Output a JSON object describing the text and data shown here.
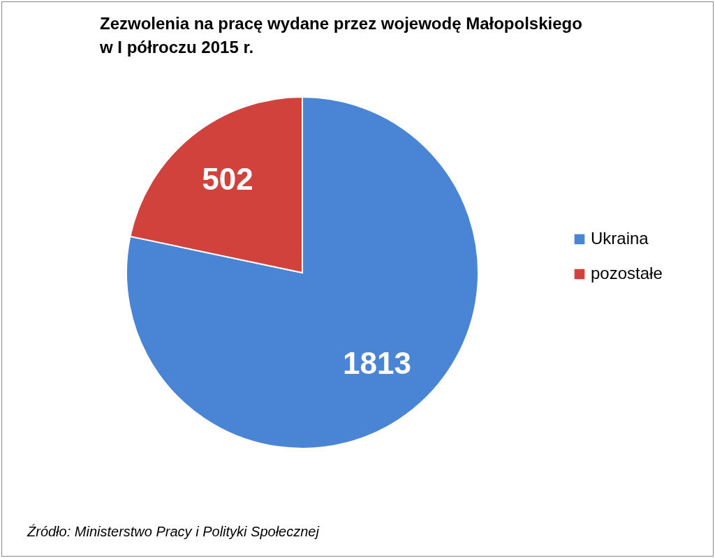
{
  "chart_data": {
    "type": "pie",
    "title": "Zezwolenia na pracę wydane przez wojewodę Małopolskiego\nw I półroczu 2015 r.",
    "categories": [
      "Ukraina",
      "pozostałe"
    ],
    "values": [
      1813,
      502
    ],
    "colors": [
      "#4a84d4",
      "#d2423d"
    ],
    "data_labels": true,
    "legend": "right",
    "annotations": [
      "Źródło: Ministerstwo Pracy i Polityki Społecznej"
    ]
  }
}
